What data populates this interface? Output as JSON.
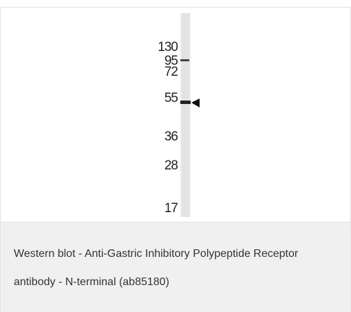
{
  "markers": [
    "130",
    "95",
    "72",
    "55",
    "36",
    "28",
    "17"
  ],
  "caption": "Western blot - Anti-Gastric Inhibitory Polypeptide Receptor antibody - N-terminal (ab85180)"
}
